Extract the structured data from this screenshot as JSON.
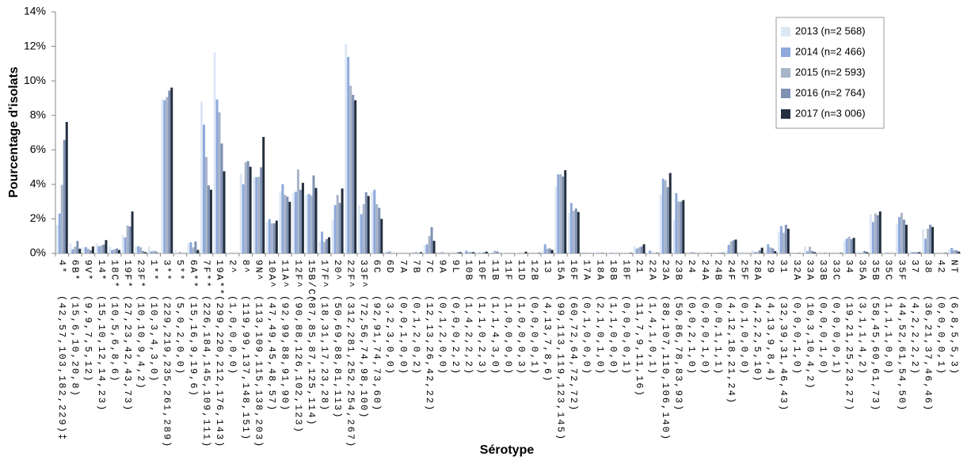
{
  "chart_data": {
    "type": "bar",
    "x_label": "Sérotype",
    "y_label": "Pourcentage d'isolats",
    "ylim": [
      0,
      14
    ],
    "yticks": [
      {
        "value": 0,
        "label": "0%"
      },
      {
        "value": 2,
        "label": "2%"
      },
      {
        "value": 4,
        "label": "4%"
      },
      {
        "value": 6,
        "label": "6%"
      },
      {
        "value": 8,
        "label": "8%"
      },
      {
        "value": 10,
        "label": "10%"
      },
      {
        "value": 12,
        "label": "12%"
      },
      {
        "value": 14,
        "label": "14%"
      }
    ],
    "grid": false,
    "legend": "upper right",
    "categories": [
      "4*",
      "6B*",
      "9V*",
      "14*",
      "18C*",
      "19F*",
      "23F*",
      "1**",
      "3**",
      "5**",
      "6A**",
      "7F**",
      "19A**",
      "2^",
      "8^",
      "9N^",
      "10A^",
      "11A^",
      "12F^",
      "15B/C^",
      "17F^",
      "20^",
      "22F^",
      "33F^",
      "6C",
      "6D",
      "7A",
      "7B",
      "7C",
      "9A",
      "9L",
      "10B",
      "10F",
      "11B",
      "11F",
      "11D",
      "12B",
      "13",
      "15A",
      "16F",
      "17A",
      "18A",
      "18B",
      "18F",
      "21",
      "22A",
      "23A",
      "23B",
      "24",
      "24A",
      "24B",
      "24F",
      "25F",
      "28A",
      "29",
      "31",
      "32A",
      "33A",
      "33B",
      "33C",
      "34",
      "35A",
      "35B",
      "35C",
      "35F",
      "37",
      "38",
      "42",
      "NT"
    ],
    "sample_counts": [
      "(42,57,103,182,229)‡",
      "(15,6,10,20,8)",
      "(9,9,7,5,12)",
      "(15,10,12,14,23)",
      "(10,5,6,8,6)",
      "(27,23,42,43,73)",
      "(10,10,9,4,2)",
      "(10,3,4,3,0)",
      "(229,219,235,261,289)",
      "(5,0,2,0,0)",
      "(15,16,9,19,6)",
      "(226,184,145,109,111)",
      "(299,220,212,176,143)",
      "(1,0,0,0,0)",
      "(119,99,137,148,151)",
      "(113,109,115,138,203)",
      "(47,49,45,48,57)",
      "(92,99,88,91,90)",
      "(90,88,126,102,123)",
      "(87,85,87,125,114)",
      "(18,31,17,23,28)",
      "(50,69,88,81,113)",
      "(312,281,252,254,267)",
      "(72,56,74,98,100)",
      "(92,91,74,73,60)",
      "(3,2,3,0,0)",
      "(0,0,1,0,0)",
      "(0,1,2,0,2)",
      "(12,13,26,42,22)",
      "(0,1,2,0,0)",
      "(0,0,0,2,2)",
      "(1,4,2,2,2)",
      "(1,1,0,2,3)",
      "(1,1,4,3,0)",
      "(1,0,0,0,0)",
      "(1,0,0,0,3)",
      "(0,0,0,0,1)",
      "(4,13,7,8,6)",
      "(99,113,119,123,145)",
      "(60,72,64,72,72)",
      "(0,1,0,0,0)",
      "(2,1,0,1,0)",
      "(1,1,0,0,0)",
      "(0,0,0,0,1)",
      "(11,7,9,11,16)",
      "(1,4,1,0,1)",
      "(88,107,110,106,140)",
      "(50,86,78,83,93)",
      "(0,0,2,1,0)",
      "(0,0,0,1,0)",
      "(0,0,1,1,1)",
      "(4,12,18,21,24)",
      "(0,1,0,0,0)",
      "(4,2,2,5,10)",
      "(4,13,9,8,4)",
      "(32,39,31,46,43)",
      "(0,0,0,1,0)",
      "(10,3,10,4,2)",
      "(0,0,0,1,0)",
      "(0,0,0,0,1)",
      "(19,21,25,23,27)",
      "(3,1,1,4,2)",
      "(58,45,60,61,73)",
      "(1,1,1,0,0)",
      "(44,52,61,54,50)",
      "(4,2,2,2,2)",
      "(36,21,37,46,46)",
      "(0,0,0,0,1)",
      "(6,8,5,5,3)"
    ],
    "series": [
      {
        "name": "2013 (n=2 568)",
        "color": "#dde8f5",
        "values": [
          1.64,
          0.58,
          0.35,
          0.58,
          0.39,
          1.05,
          0.39,
          0.39,
          8.92,
          0.19,
          0.58,
          8.8,
          11.64,
          0.04,
          4.63,
          4.4,
          1.83,
          3.58,
          3.5,
          3.39,
          0.7,
          1.95,
          12.15,
          2.8,
          3.58,
          0.12,
          0,
          0,
          0.47,
          0,
          0,
          0.04,
          0.04,
          0.04,
          0.04,
          0.04,
          0,
          0.16,
          3.86,
          2.34,
          0,
          0.08,
          0.04,
          0,
          0.43,
          0.04,
          3.43,
          1.95,
          0,
          0,
          0,
          0.16,
          0,
          0.16,
          0.16,
          1.25,
          0,
          0.39,
          0,
          0,
          0.74,
          0.12,
          2.26,
          0.04,
          1.71,
          0.16,
          1.4,
          0,
          0.23
        ]
      },
      {
        "name": "2014 (n=2 466)",
        "color": "#8ea9db",
        "values": [
          2.31,
          0.24,
          0.36,
          0.41,
          0.2,
          0.93,
          0.41,
          0.12,
          8.88,
          0,
          0.65,
          7.46,
          8.92,
          0,
          4.01,
          4.42,
          1.99,
          4.01,
          3.57,
          3.45,
          1.26,
          2.8,
          11.39,
          2.27,
          3.69,
          0.08,
          0,
          0.04,
          0.53,
          0.04,
          0,
          0.16,
          0.04,
          0.04,
          0,
          0,
          0,
          0.53,
          4.58,
          2.92,
          0.04,
          0.04,
          0.04,
          0,
          0.28,
          0.16,
          4.34,
          3.49,
          0,
          0,
          0,
          0.49,
          0.04,
          0.08,
          0.53,
          1.58,
          0,
          0.12,
          0,
          0,
          0.85,
          0.04,
          1.82,
          0.04,
          2.11,
          0.08,
          0.85,
          0,
          0.32
        ]
      },
      {
        "name": "2015 (n=2 593)",
        "color": "#a8b4c8",
        "values": [
          3.97,
          0.39,
          0.27,
          0.46,
          0.23,
          1.62,
          0.35,
          0.15,
          9.06,
          0.08,
          0.35,
          5.59,
          8.18,
          0,
          5.28,
          4.44,
          1.74,
          3.39,
          4.86,
          3.36,
          0.66,
          3.39,
          9.72,
          2.85,
          2.85,
          0.12,
          0.04,
          0.08,
          1.0,
          0.08,
          0,
          0.08,
          0,
          0.15,
          0,
          0,
          0,
          0.27,
          4.59,
          2.47,
          0,
          0,
          0,
          0,
          0.35,
          0.04,
          4.24,
          3.01,
          0.08,
          0,
          0.04,
          0.69,
          0,
          0.08,
          0.35,
          1.2,
          0,
          0.39,
          0,
          0,
          0.96,
          0.04,
          2.31,
          0.04,
          2.35,
          0.08,
          1.43,
          0,
          0.19
        ]
      },
      {
        "name": "2016 (n=2 764)",
        "color": "#7f91b3",
        "values": [
          6.58,
          0.72,
          0.18,
          0.51,
          0.29,
          1.56,
          0.14,
          0.11,
          9.44,
          0,
          0.69,
          3.94,
          6.37,
          0,
          5.35,
          4.99,
          1.74,
          3.29,
          3.69,
          4.52,
          0.83,
          2.93,
          9.19,
          3.55,
          2.64,
          0,
          0,
          0,
          1.52,
          0,
          0.07,
          0.07,
          0.07,
          0.11,
          0,
          0,
          0,
          0.29,
          4.45,
          2.6,
          0,
          0.04,
          0,
          0,
          0.4,
          0,
          3.84,
          3.0,
          0.04,
          0.04,
          0.04,
          0.76,
          0,
          0.18,
          0.29,
          1.66,
          0.04,
          0.14,
          0.04,
          0,
          0.83,
          0.14,
          2.21,
          0,
          1.95,
          0.07,
          1.66,
          0,
          0.18
        ]
      },
      {
        "name": "2017 (n=3 006)",
        "color": "#232f3e",
        "values": [
          7.62,
          0.27,
          0.4,
          0.77,
          0.2,
          2.43,
          0.07,
          0,
          9.61,
          0,
          0.2,
          3.69,
          4.76,
          0,
          5.02,
          6.75,
          1.9,
          2.99,
          4.09,
          3.79,
          0.93,
          3.76,
          8.88,
          3.33,
          2.0,
          0,
          0,
          0.07,
          0.73,
          0,
          0.07,
          0.07,
          0.1,
          0,
          0,
          0.1,
          0.03,
          0.2,
          4.82,
          2.4,
          0,
          0,
          0,
          0.03,
          0.53,
          0.03,
          4.66,
          3.09,
          0,
          0,
          0.03,
          0.8,
          0,
          0.33,
          0.13,
          1.43,
          0,
          0.07,
          0,
          0.03,
          0.9,
          0.07,
          2.43,
          0,
          1.66,
          0.07,
          1.53,
          0.03,
          0.1
        ]
      }
    ]
  }
}
